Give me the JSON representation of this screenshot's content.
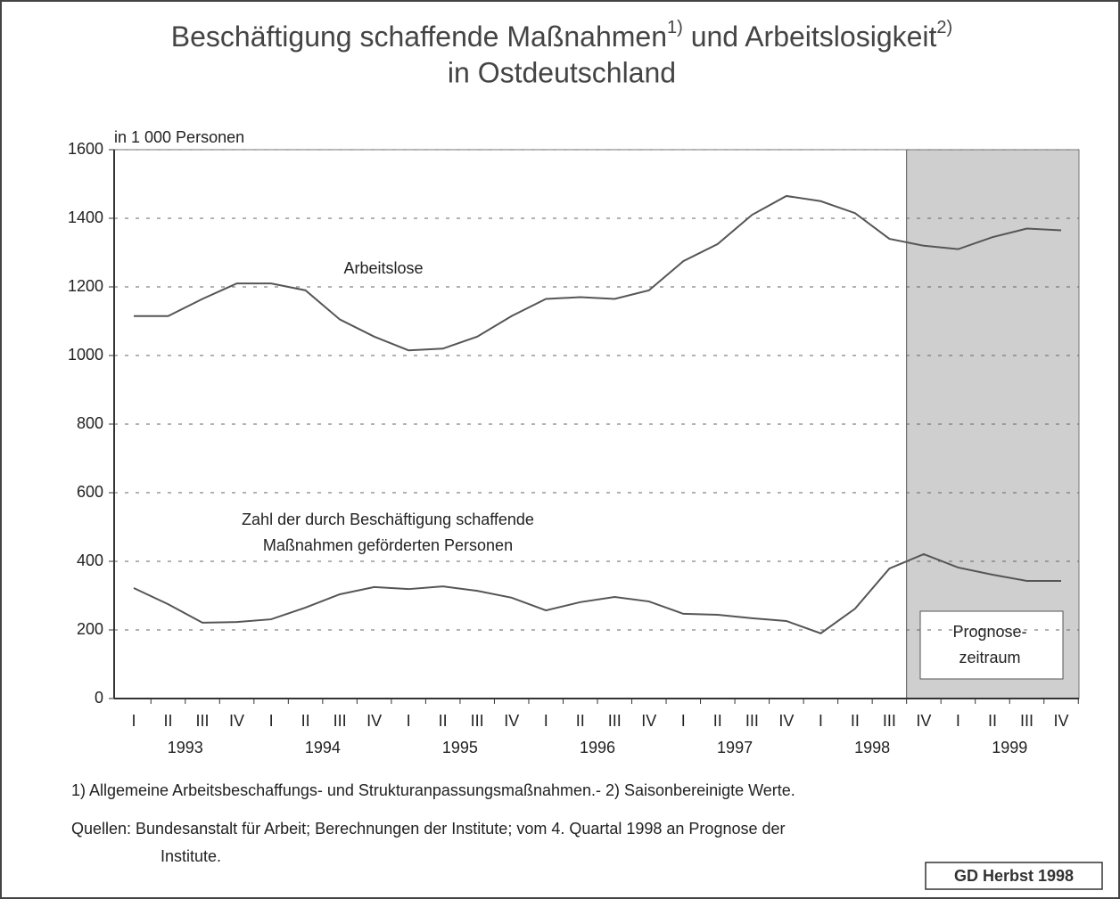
{
  "chart_data": {
    "type": "line",
    "title": {
      "part1": "Beschäftigung schaffende Maßnahmen",
      "note1": "1)",
      "part2": " und Arbeitslosigkeit",
      "note2": "2)",
      "line2": "in Ostdeutschland"
    },
    "y_label": "in 1 000 Personen",
    "categories": [
      "I",
      "II",
      "III",
      "IV",
      "I",
      "II",
      "III",
      "IV",
      "I",
      "II",
      "III",
      "IV",
      "I",
      "II",
      "III",
      "IV",
      "I",
      "II",
      "III",
      "IV",
      "I",
      "II",
      "III",
      "IV",
      "I",
      "II",
      "III",
      "IV"
    ],
    "years": [
      "1993",
      "1994",
      "1995",
      "1996",
      "1997",
      "1998",
      "1999"
    ],
    "series": [
      {
        "name": "Arbeitslose",
        "color": "#555",
        "values": [
          1115,
          1115,
          1165,
          1210,
          1210,
          1190,
          1105,
          1055,
          1015,
          1020,
          1055,
          1115,
          1165,
          1170,
          1165,
          1190,
          1275,
          1325,
          1410,
          1465,
          1450,
          1415,
          1340,
          1320,
          1310,
          1345,
          1370,
          1365
        ]
      },
      {
        "name": [
          "Zahl der durch Beschäftigung schaffende",
          "Maßnahmen geförderten Personen"
        ],
        "color": "#555",
        "values": [
          322,
          275,
          221,
          223,
          231,
          265,
          304,
          325,
          319,
          327,
          314,
          294,
          257,
          281,
          296,
          283,
          247,
          244,
          234,
          226,
          190,
          262,
          379,
          421,
          382,
          361,
          343,
          343
        ]
      }
    ],
    "ylim": [
      0,
      1600
    ],
    "yticks": [
      0,
      200,
      400,
      600,
      800,
      1000,
      1200,
      1400,
      1600
    ],
    "grid": true,
    "forecast_from": 23,
    "forecast_label": [
      "Prognose-",
      "zeitraum"
    ],
    "footnotes": [
      "1) Allgemeine Arbeitsbeschaffungs- und Strukturanpassungsmaßnahmen.- 2) Saisonbereinigte Werte.",
      "Quellen: Bundesanstalt für Arbeit; Berechnungen der Institute; vom 4. Quartal 1998 an Prognose der",
      "Institute."
    ],
    "badge": "GD Herbst 1998"
  }
}
